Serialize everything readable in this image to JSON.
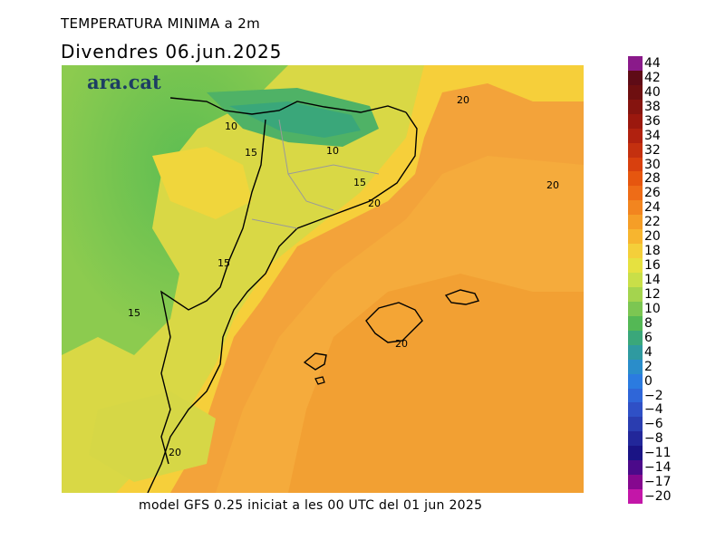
{
  "header": {
    "title": "TEMPERATURA MINIMA a 2m",
    "subtitle": "Divendres  06.jun.2025"
  },
  "footer": {
    "text": "model GFS 0.25 iniciat a les 00 UTC del 01 jun 2025"
  },
  "logo": {
    "text": "ara.cat"
  },
  "map": {
    "contour_labels": [
      "10",
      "10",
      "15",
      "15",
      "15",
      "15",
      "20",
      "20",
      "20",
      "20",
      "20"
    ]
  },
  "legend": {
    "labels": [
      "44",
      "42",
      "40",
      "38",
      "36",
      "34",
      "32",
      "30",
      "28",
      "26",
      "24",
      "22",
      "20",
      "18",
      "16",
      "14",
      "12",
      "10",
      "8",
      "6",
      "4",
      "2",
      "0",
      "−2",
      "−4",
      "−6",
      "−8",
      "−11",
      "−14",
      "−17",
      "−20"
    ],
    "colors": [
      "#8a1a8a",
      "#5e0b16",
      "#6e0f10",
      "#85140f",
      "#9b180e",
      "#b0210f",
      "#c4300f",
      "#d8400e",
      "#e6560f",
      "#ee6c17",
      "#f2851f",
      "#f59e27",
      "#f7b52f",
      "#f4cf3a",
      "#e6e140",
      "#c9df48",
      "#a4d44e",
      "#7cc652",
      "#54b855",
      "#3aa77a",
      "#2f9aa0",
      "#2a8dca",
      "#2b7be0",
      "#2f66d8",
      "#2f50c6",
      "#2a3db0",
      "#22279a",
      "#1a1485",
      "#4b0a8a",
      "#86088f",
      "#c316a8"
    ]
  }
}
